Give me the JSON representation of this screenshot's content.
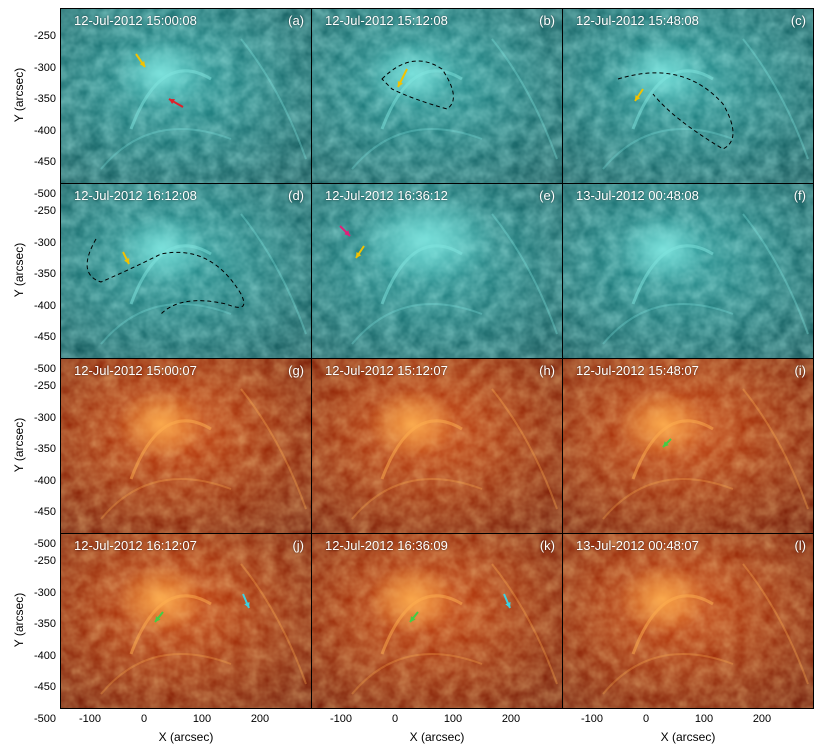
{
  "panels": [
    {
      "id": "a",
      "label": "(a)",
      "timestamp": "12-Jul-2012 15:00:08",
      "channel": "teal"
    },
    {
      "id": "b",
      "label": "(b)",
      "timestamp": "12-Jul-2012 15:12:08",
      "channel": "teal"
    },
    {
      "id": "c",
      "label": "(c)",
      "timestamp": "12-Jul-2012 15:48:08",
      "channel": "teal"
    },
    {
      "id": "d",
      "label": "(d)",
      "timestamp": "12-Jul-2012 16:12:08",
      "channel": "teal"
    },
    {
      "id": "e",
      "label": "(e)",
      "timestamp": "12-Jul-2012 16:36:12",
      "channel": "teal"
    },
    {
      "id": "f",
      "label": "(f)",
      "timestamp": "13-Jul-2012 00:48:08",
      "channel": "teal"
    },
    {
      "id": "g",
      "label": "(g)",
      "timestamp": "12-Jul-2012 15:00:07",
      "channel": "red"
    },
    {
      "id": "h",
      "label": "(h)",
      "timestamp": "12-Jul-2012 15:12:07",
      "channel": "red"
    },
    {
      "id": "i",
      "label": "(i)",
      "timestamp": "12-Jul-2012 15:48:07",
      "channel": "red"
    },
    {
      "id": "j",
      "label": "(j)",
      "timestamp": "12-Jul-2012 16:12:07",
      "channel": "red"
    },
    {
      "id": "k",
      "label": "(k)",
      "timestamp": "12-Jul-2012 16:36:09",
      "channel": "red"
    },
    {
      "id": "l",
      "label": "(l)",
      "timestamp": "13-Jul-2012 00:48:07",
      "channel": "red"
    }
  ],
  "axes": {
    "ylabel": "Y (arcsec)",
    "xlabel": "X (arcsec)",
    "yticks": [
      "-250",
      "-300",
      "-350",
      "-400",
      "-450",
      "-500"
    ],
    "xticks": [
      "-100",
      "0",
      "100",
      "200"
    ]
  },
  "colors": {
    "teal": "#1c8a8a",
    "red": "#b02a06",
    "arrow_yellow": "#f2c200",
    "arrow_red": "#e0202a",
    "arrow_magenta": "#e0207a",
    "arrow_green": "#44cc44",
    "arrow_cyan": "#40d0e0"
  }
}
